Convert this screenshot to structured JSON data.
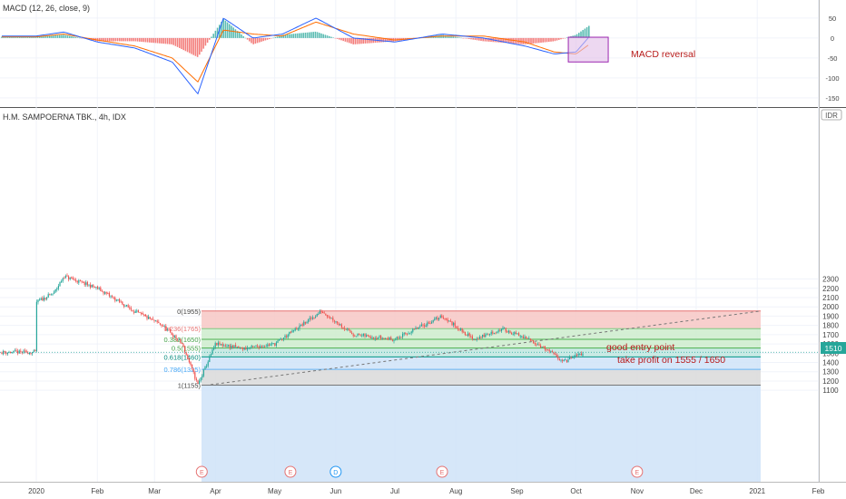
{
  "macd_panel": {
    "title": "MACD (12, 26, close, 9)",
    "axis_ticks": [
      50,
      0,
      -50,
      -100,
      -150
    ],
    "annotation": "MACD reversal"
  },
  "main_panel": {
    "title": "H.M. SAMPOERNA TBK., 4h, IDX",
    "currency_badge": "IDR",
    "price_badge": "1510",
    "y_ticks": [
      2300,
      2200,
      2100,
      2000,
      1900,
      1800,
      1700,
      1600,
      1500,
      1400,
      1300,
      1200,
      1100
    ],
    "annotation_line1": "good entry point",
    "annotation_line2": "take profit on 1555 / 1650"
  },
  "x_axis": {
    "labels": [
      "2020",
      "Feb",
      "Mar",
      "Apr",
      "May",
      "Jun",
      "Jul",
      "Aug",
      "Sep",
      "Oct",
      "Nov",
      "Dec",
      "2021",
      "Feb"
    ]
  },
  "events": [
    "E",
    "E",
    "D",
    "E",
    "E"
  ],
  "colors": {
    "up": "#26a69a",
    "down": "#ef5350",
    "macd_line": "#2962ff",
    "signal_line": "#ff6d00",
    "annotation_text": "#b71c1c",
    "reversal_box": "#9c27b0"
  },
  "chart_data": {
    "type": "candlestick",
    "instrument": "H.M. SAMPOERNA TBK., 4h, IDX",
    "series": [
      {
        "name": "price",
        "x": [
          "2020-01-01",
          "2020-01-10",
          "2020-01-15",
          "2020-02-01",
          "2020-02-20",
          "2020-03-05",
          "2020-03-15",
          "2020-03-23",
          "2020-04-01",
          "2020-04-15",
          "2020-05-01",
          "2020-05-25",
          "2020-06-10",
          "2020-07-01",
          "2020-07-25",
          "2020-08-10",
          "2020-08-25",
          "2020-09-10",
          "2020-09-25",
          "2020-10-05"
        ],
        "values": [
          2050,
          2150,
          2330,
          2200,
          1950,
          1800,
          1600,
          1160,
          1600,
          1550,
          1600,
          1955,
          1700,
          1650,
          1900,
          1650,
          1760,
          1620,
          1410,
          1510
        ]
      }
    ],
    "fibonacci": [
      {
        "level": "0",
        "price": 1955
      },
      {
        "level": "0.236",
        "price": 1765
      },
      {
        "level": "0.382",
        "price": 1650
      },
      {
        "level": "0.5",
        "price": 1555
      },
      {
        "level": "0.618",
        "price": 1460
      },
      {
        "level": "0.786",
        "price": 1325
      },
      {
        "level": "1",
        "price": 1155
      }
    ],
    "fib_labels": [
      "0(1955)",
      "0.236(1765)",
      "0.382(1650)",
      "0.5(1555)",
      "0.618(1460)",
      "0.786(1325)",
      "1(1155)"
    ],
    "macd": {
      "x": [
        "2020-01-01",
        "2020-01-15",
        "2020-02-01",
        "2020-02-20",
        "2020-03-10",
        "2020-03-23",
        "2020-04-05",
        "2020-04-20",
        "2020-05-05",
        "2020-05-22",
        "2020-06-10",
        "2020-07-01",
        "2020-07-25",
        "2020-08-15",
        "2020-09-05",
        "2020-09-20",
        "2020-10-01",
        "2020-10-08"
      ],
      "macd": [
        5,
        15,
        -10,
        -25,
        -60,
        -140,
        50,
        0,
        10,
        50,
        0,
        -10,
        10,
        0,
        -20,
        -40,
        -35,
        5
      ],
      "signal": [
        3,
        10,
        -5,
        -20,
        -50,
        -110,
        20,
        10,
        5,
        40,
        10,
        -5,
        5,
        5,
        -10,
        -35,
        -40,
        -15
      ]
    },
    "ylim": [
      1060,
      2360
    ],
    "macd_ylim": [
      -160,
      60
    ]
  }
}
